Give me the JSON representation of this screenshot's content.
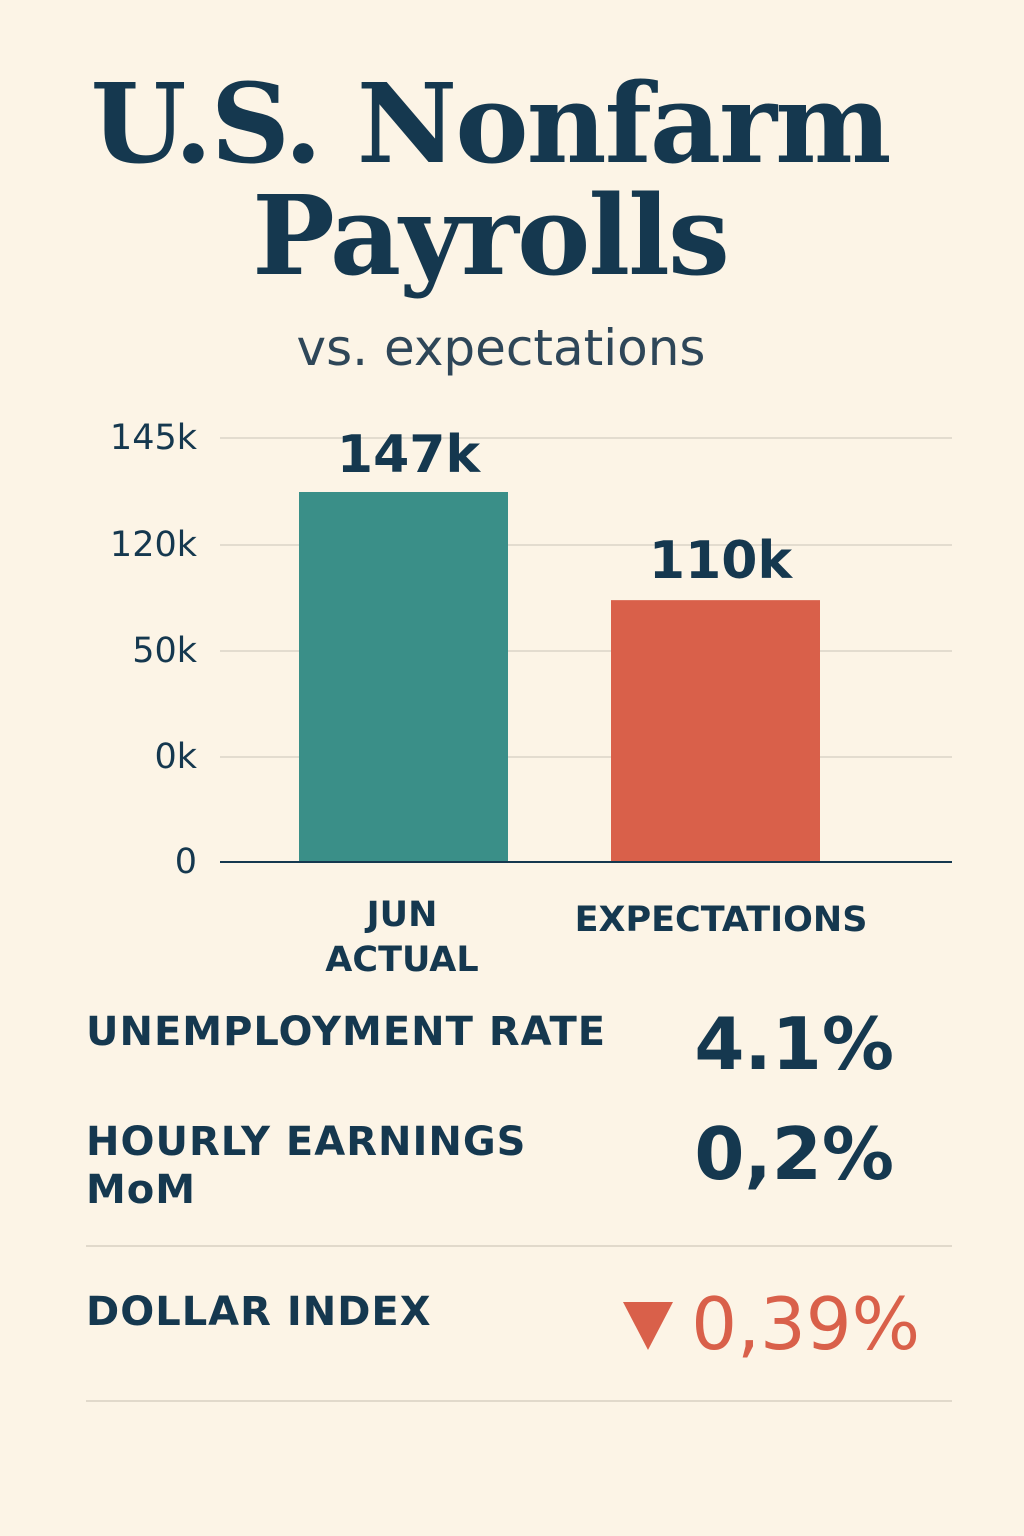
{
  "colors": {
    "background": "#fcf4e6",
    "text": "#15384f",
    "actual_bar": "#3a8f88",
    "expectations_bar": "#d9604a",
    "negative": "#d9604a"
  },
  "title_line1": "U.S. Nonfarm",
  "title_line2": "Payrolls",
  "subtitle": "vs. expectations",
  "chart_data": {
    "type": "bar",
    "categories": [
      [
        "JUN",
        "ACTUAL"
      ],
      [
        "EXPECTATIONS"
      ]
    ],
    "values": [
      147,
      110
    ],
    "value_labels": [
      "147k",
      "110k"
    ],
    "y_tick_labels": [
      "145k",
      "120k",
      "50k",
      "0k",
      "0"
    ],
    "bar_colors": [
      "#3a8f88",
      "#d9604a"
    ],
    "grid": true,
    "xlabel": "",
    "ylabel": ""
  },
  "stats": {
    "unemployment": {
      "label": "UNEMPLOYMENT RATE",
      "value": "4.1%"
    },
    "hourly_earnings": {
      "label_line1": "HOURLY EARNINGS",
      "label_line2": "MoM",
      "value": "0,2%"
    },
    "dollar_index": {
      "label": "DOLLAR INDEX",
      "value": "0,39%",
      "direction_icon": "down-triangle-icon"
    }
  }
}
